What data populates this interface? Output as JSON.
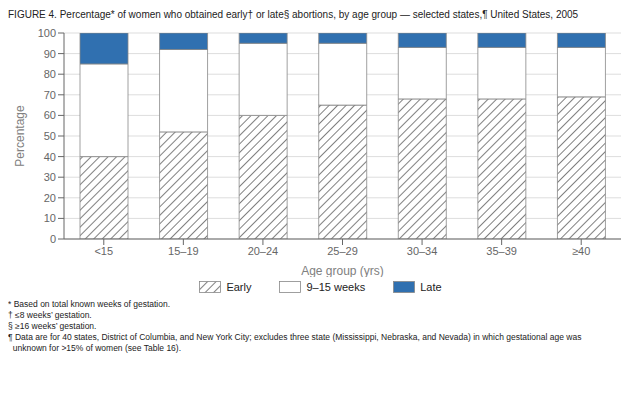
{
  "chart_data": {
    "type": "bar",
    "stacked": true,
    "title": "FIGURE 4. Percentage* of women who obtained early† or late§ abortions, by age group — selected states,¶ United States, 2005",
    "categories": [
      "<15",
      "15–19",
      "20–24",
      "25–29",
      "30–34",
      "35–39",
      "≥40"
    ],
    "series": [
      {
        "name": "Early",
        "color": "white",
        "values": [
          40,
          52,
          60,
          65,
          68,
          68,
          69
        ]
      },
      {
        "name": "9–15 weeks",
        "color": "white",
        "values": [
          45,
          40,
          35,
          30,
          25,
          25,
          24
        ]
      },
      {
        "name": "Late",
        "color": "#3070B0",
        "values": [
          15,
          8,
          5,
          5,
          7,
          7,
          7
        ]
      }
    ],
    "xlabel": "Age group (yrs)",
    "ylabel": "Percentage",
    "ylim": [
      0,
      100
    ],
    "yticks": [
      0,
      10,
      20,
      30,
      40,
      50,
      60,
      70,
      80,
      90,
      100
    ],
    "grid": true,
    "legend": "bottom",
    "annotations": [
      "* Based on total known weeks of gestation.",
      "† ≤8 weeks’ gestation.",
      "§ ≥16 weeks’ gestation.",
      "¶ Data are for 40 states, District of Columbia, and New York City; excludes three state (Mississippi, Nebraska, and Nevada) in which gestational age was\n  unknown for >15% of women (see Table 16)."
    ]
  }
}
